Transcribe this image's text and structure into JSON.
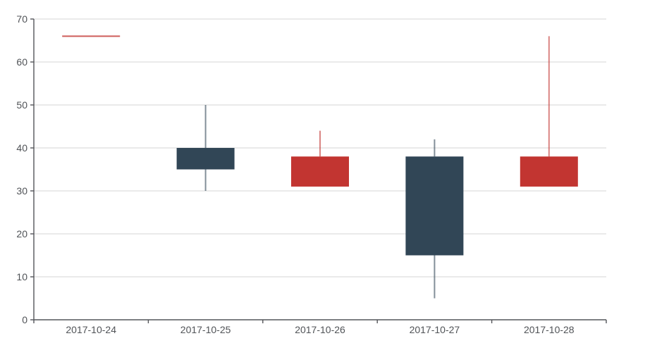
{
  "chart_data": {
    "type": "candlestick",
    "title": "",
    "categories": [
      "2017-10-24",
      "2017-10-25",
      "2017-10-26",
      "2017-10-27",
      "2017-10-28"
    ],
    "series": [
      {
        "name": "candlestick",
        "data": [
          {
            "date": "2017-10-24",
            "open": 66,
            "close": 66,
            "low": 66,
            "high": 66
          },
          {
            "date": "2017-10-25",
            "open": 40,
            "close": 35,
            "low": 30,
            "high": 50
          },
          {
            "date": "2017-10-26",
            "open": 31,
            "close": 38,
            "low": 33,
            "high": 44
          },
          {
            "date": "2017-10-27",
            "open": 38,
            "close": 15,
            "low": 5,
            "high": 42
          },
          {
            "date": "2017-10-28",
            "open": 31,
            "close": 38,
            "low": 31,
            "high": 66
          }
        ]
      }
    ],
    "y_axis": {
      "min": 0,
      "max": 70,
      "ticks": [
        0,
        10,
        20,
        30,
        40,
        50,
        60,
        70
      ]
    },
    "x_axis": {
      "labels": [
        "2017-10-24",
        "2017-10-25",
        "2017-10-26",
        "2017-10-27",
        "2017-10-28"
      ]
    },
    "grid": true,
    "legend": null,
    "colors": {
      "bullish": "#c23531",
      "bearish": "#314656",
      "grid_line": "#e4e4e4",
      "axis_line": "#54565a",
      "tick_label": "#505357",
      "background": "#ffffff"
    }
  }
}
